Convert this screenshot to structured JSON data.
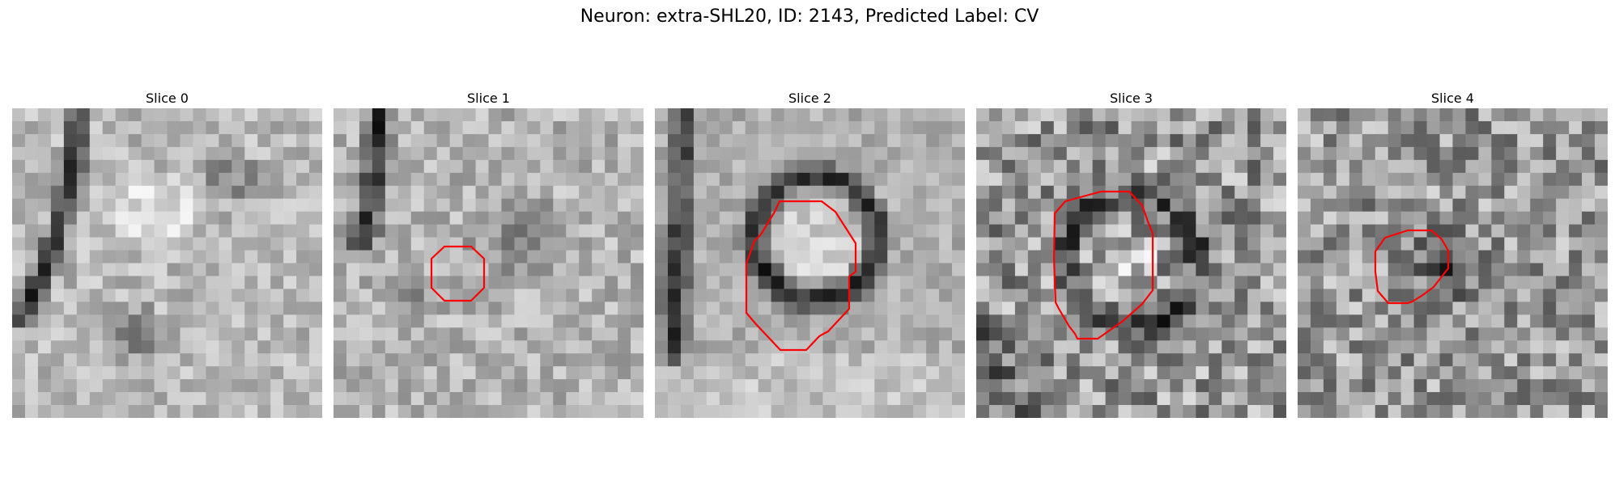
{
  "figure": {
    "title": "Neuron: extra-SHL20, ID: 2143, Predicted Label: CV"
  },
  "contour_color": "#ff0000",
  "panels": [
    {
      "title": "Slice 0"
    },
    {
      "title": "Slice 1"
    },
    {
      "title": "Slice 2"
    },
    {
      "title": "Slice 3"
    },
    {
      "title": "Slice 4"
    }
  ]
}
